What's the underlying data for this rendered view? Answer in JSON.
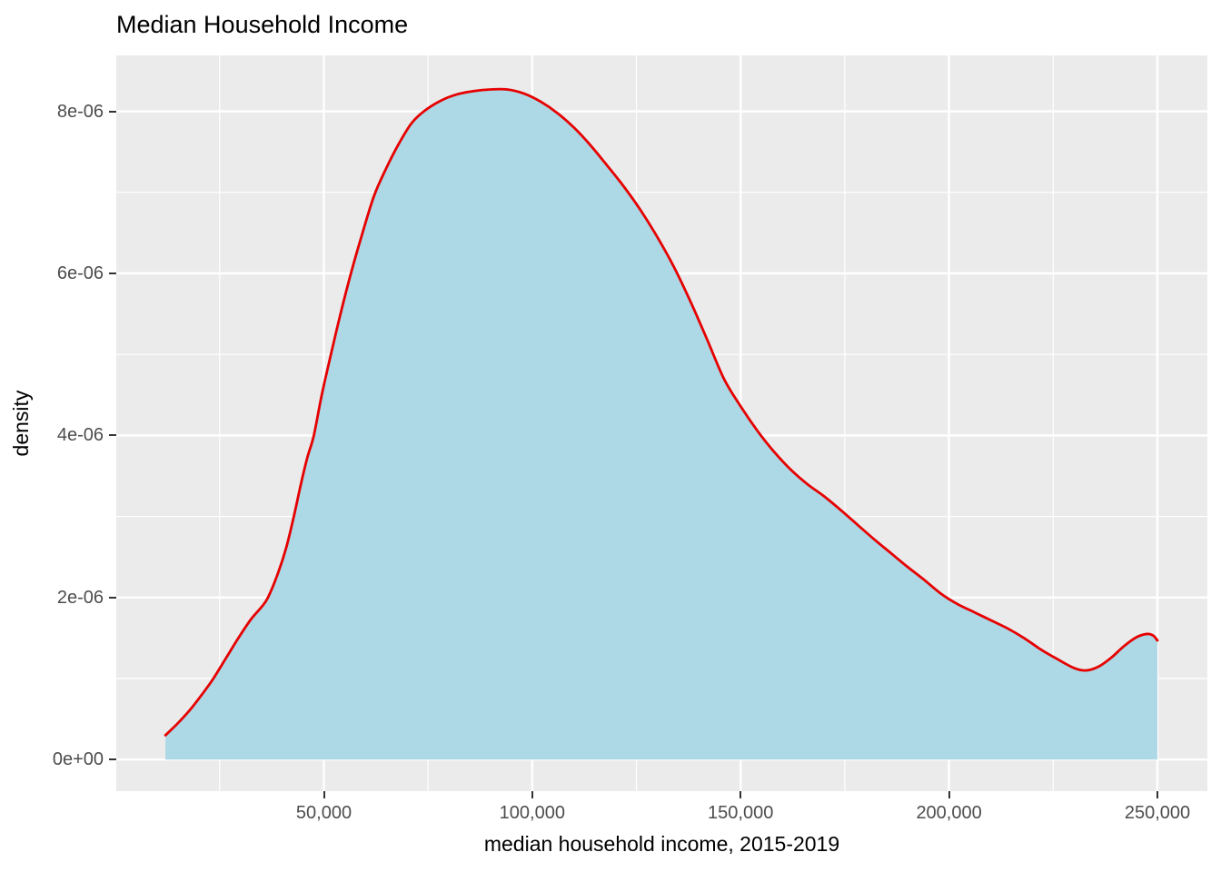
{
  "page": {
    "title": "Median Household Income"
  },
  "style": {
    "panel_background": "#EBEBEB",
    "grid_color": "#FFFFFF",
    "tick_mark_color": "#333333",
    "tick_label_color": "#4D4D4D",
    "axis_title_color": "#000000",
    "density_fill_color": "#ADD8E6",
    "density_line_color": "#E60000"
  },
  "chart_data": {
    "type": "area",
    "subtype": "density",
    "title": "Median Household Income",
    "xlabel": "median household income, 2015-2019",
    "ylabel": "density",
    "grid": true,
    "legend": "none",
    "xlim": [
      200,
      262000
    ],
    "ylim": [
      -3.9e-07,
      8.69e-06
    ],
    "x_ticks": [
      {
        "value": 50000,
        "label": "50,000"
      },
      {
        "value": 100000,
        "label": "100,000"
      },
      {
        "value": 150000,
        "label": "150,000"
      },
      {
        "value": 200000,
        "label": "200,000"
      },
      {
        "value": 250000,
        "label": "250,000"
      }
    ],
    "y_ticks": [
      {
        "value": 0,
        "label": "0e+00"
      },
      {
        "value": 2e-06,
        "label": "2e-06"
      },
      {
        "value": 4e-06,
        "label": "4e-06"
      },
      {
        "value": 6e-06,
        "label": "6e-06"
      },
      {
        "value": 8e-06,
        "label": "8e-06"
      }
    ],
    "x_minor": [
      25000,
      75000,
      125000,
      175000,
      225000
    ],
    "y_minor": [
      1e-06,
      3e-06,
      5e-06,
      7e-06
    ],
    "points": [
      [
        12000,
        3e-07
      ],
      [
        15000,
        4.5e-07
      ],
      [
        18000,
        6.2e-07
      ],
      [
        21000,
        8.2e-07
      ],
      [
        23500,
        1e-06
      ],
      [
        26500,
        1.25e-06
      ],
      [
        29500,
        1.5e-06
      ],
      [
        32500,
        1.73e-06
      ],
      [
        35000,
        1.88e-06
      ],
      [
        36600,
        2e-06
      ],
      [
        39000,
        2.3e-06
      ],
      [
        41000,
        2.62e-06
      ],
      [
        42800,
        3e-06
      ],
      [
        44500,
        3.4e-06
      ],
      [
        46000,
        3.72e-06
      ],
      [
        47600,
        4e-06
      ],
      [
        49500,
        4.5e-06
      ],
      [
        51700,
        5e-06
      ],
      [
        54000,
        5.5e-06
      ],
      [
        56500,
        6e-06
      ],
      [
        59000,
        6.45e-06
      ],
      [
        62000,
        6.95e-06
      ],
      [
        65000,
        7.3e-06
      ],
      [
        68000,
        7.6e-06
      ],
      [
        71000,
        7.85e-06
      ],
      [
        74000,
        8e-06
      ],
      [
        78000,
        8.13e-06
      ],
      [
        82000,
        8.21e-06
      ],
      [
        86000,
        8.25e-06
      ],
      [
        90000,
        8.27e-06
      ],
      [
        94000,
        8.27e-06
      ],
      [
        98000,
        8.22e-06
      ],
      [
        102000,
        8.12e-06
      ],
      [
        106000,
        7.98e-06
      ],
      [
        110000,
        7.8e-06
      ],
      [
        114000,
        7.58e-06
      ],
      [
        118000,
        7.33e-06
      ],
      [
        122000,
        7.07e-06
      ],
      [
        126000,
        6.78e-06
      ],
      [
        130000,
        6.45e-06
      ],
      [
        134000,
        6.08e-06
      ],
      [
        138000,
        5.65e-06
      ],
      [
        142000,
        5.18e-06
      ],
      [
        146000,
        4.7e-06
      ],
      [
        150000,
        4.36e-06
      ],
      [
        154000,
        4.06e-06
      ],
      [
        158000,
        3.8e-06
      ],
      [
        162000,
        3.58e-06
      ],
      [
        166000,
        3.4e-06
      ],
      [
        170000,
        3.25e-06
      ],
      [
        174000,
        3.08e-06
      ],
      [
        178000,
        2.9e-06
      ],
      [
        182000,
        2.72e-06
      ],
      [
        186000,
        2.55e-06
      ],
      [
        190000,
        2.38e-06
      ],
      [
        194000,
        2.22e-06
      ],
      [
        198000,
        2.05e-06
      ],
      [
        202000,
        1.92e-06
      ],
      [
        206000,
        1.82e-06
      ],
      [
        210000,
        1.72e-06
      ],
      [
        214000,
        1.62e-06
      ],
      [
        218000,
        1.5e-06
      ],
      [
        222000,
        1.36e-06
      ],
      [
        226000,
        1.24e-06
      ],
      [
        230000,
        1.13e-06
      ],
      [
        233000,
        1.1e-06
      ],
      [
        236000,
        1.15e-06
      ],
      [
        239000,
        1.26e-06
      ],
      [
        242000,
        1.4e-06
      ],
      [
        245000,
        1.51e-06
      ],
      [
        247500,
        1.55e-06
      ],
      [
        249000,
        1.53e-06
      ],
      [
        250000,
        1.47e-06
      ]
    ]
  }
}
